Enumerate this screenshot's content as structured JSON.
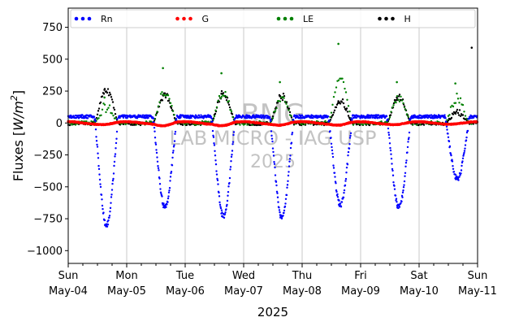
{
  "chart_data": {
    "type": "scatter",
    "title": "",
    "xlabel": "2025",
    "ylabel_prefix": "Fluxes [",
    "ylabel_unit_base": "W/m",
    "ylabel_unit_exp": "2",
    "ylabel_suffix": "]",
    "ylim": [
      -1100,
      900
    ],
    "yticks": [
      750,
      500,
      250,
      0,
      -250,
      -500,
      -750,
      -1000
    ],
    "xlim_days": [
      0,
      7
    ],
    "xticks": [
      {
        "day": "Sun",
        "date": "May-04"
      },
      {
        "day": "Mon",
        "date": "May-05"
      },
      {
        "day": "Tue",
        "date": "May-06"
      },
      {
        "day": "Wed",
        "date": "May-07"
      },
      {
        "day": "Thu",
        "date": "May-08"
      },
      {
        "day": "Fri",
        "date": "May-09"
      },
      {
        "day": "Sat",
        "date": "May-10"
      },
      {
        "day": "Sun",
        "date": "May-11"
      }
    ],
    "grid": "vertical",
    "legend_position": "top",
    "watermark": [
      "BMG",
      "LAB MICRO - IAG USP",
      "2025"
    ],
    "series": [
      {
        "name": "Rn",
        "color": "#0000ff",
        "night_level": 50,
        "daily_minima": [
          -800,
          -660,
          -730,
          -740,
          -640,
          -660,
          -440
        ]
      },
      {
        "name": "G",
        "color": "#ff0000",
        "night_level": 10,
        "daily_minima": [
          -5,
          -15,
          -15,
          -10,
          -10,
          -5,
          0
        ]
      },
      {
        "name": "LE",
        "color": "#008000",
        "night_level": 0,
        "daily_maxima": [
          200,
          430,
          390,
          320,
          620,
          320,
          310
        ]
      },
      {
        "name": "H",
        "color": "#000000",
        "night_level": 0,
        "daily_maxima": [
          260,
          220,
          230,
          210,
          170,
          200,
          80
        ],
        "outliers": [
          {
            "x": 6.9,
            "y": 590
          }
        ]
      }
    ]
  }
}
